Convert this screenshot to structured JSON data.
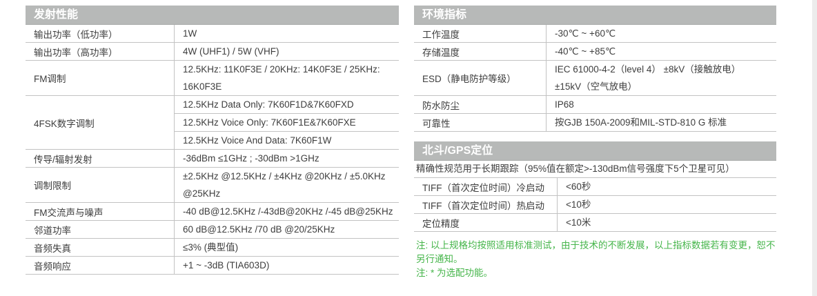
{
  "colors": {
    "header_bg": "#b7b9b8",
    "header_text": "#ffffff",
    "table_border": "#c2c2c2",
    "body_text": "#3d3d3d",
    "note_green": "#45b54a"
  },
  "tables": {
    "transmit": {
      "title": "发射性能",
      "rows": [
        {
          "label": "输出功率（低功率）",
          "value": "1W"
        },
        {
          "label": "输出功率（高功率）",
          "value": "4W (UHF1) / 5W (VHF)"
        },
        {
          "label": "FM调制",
          "value": "12.5KHz: 11K0F3E / 20KHz: 14K0F3E / 25KHz:\n16K0F3E"
        },
        {
          "label": "4FSK数字调制",
          "values": [
            "12.5KHz Data Only: 7K60F1D&7K60FXD",
            "12.5KHz Voice Only: 7K60F1E&7K60FXE",
            "12.5KHz Voice And Data: 7K60F1W"
          ]
        },
        {
          "label": "传导/辐射发射",
          "value": "-36dBm ≤1GHz ; -30dBm >1GHz"
        },
        {
          "label": "调制限制",
          "value": "±2.5KHz @12.5KHz / ±4KHz @20KHz / ±5.0KHz\n@25KHz"
        },
        {
          "label": "FM交流声与噪声",
          "value": "-40 dB@12.5KHz /-43dB@20KHz /-45 dB@25KHz"
        },
        {
          "label": "邻道功率",
          "value": "60 dB@12.5KHz /70 dB @20/25KHz"
        },
        {
          "label": "音频失真",
          "value": "≤3% (典型值)"
        },
        {
          "label": "音频响应",
          "value": "+1 ~ -3dB (TIA603D)"
        }
      ]
    },
    "environment": {
      "title": "环境指标",
      "rows": [
        {
          "label": "工作温度",
          "value": "-30℃ ~ +60℃"
        },
        {
          "label": "存储温度",
          "value": "-40℃ ~ +85℃"
        },
        {
          "label": "ESD（静电防护等级）",
          "value": "IEC 61000-4-2（level 4）  ±8kV（接触放电）\n±15kV（空气放电）"
        },
        {
          "label": "防水防尘",
          "value": "IP68"
        },
        {
          "label": "可靠性",
          "value": "按GJB 150A-2009和MIL-STD-810 G 标准"
        }
      ]
    },
    "gps": {
      "title": "北斗/GPS定位",
      "subtitle": "精确性规范用于长期跟踪（95%值在额定>-130dBm信号强度下5个卫星可见）",
      "rows": [
        {
          "label": "TIFF（首次定位时间）冷启动",
          "value": "<60秒"
        },
        {
          "label": "TIFF（首次定位时间）热启动",
          "value": "<10秒"
        },
        {
          "label": "定位精度",
          "value": "<10米"
        }
      ]
    }
  },
  "notes": [
    "注: 以上规格均按照适用标准测试，由于技术的不断发展，以上指标数据若有变更，恕不另行通知。",
    "注: * 为选配功能。"
  ]
}
